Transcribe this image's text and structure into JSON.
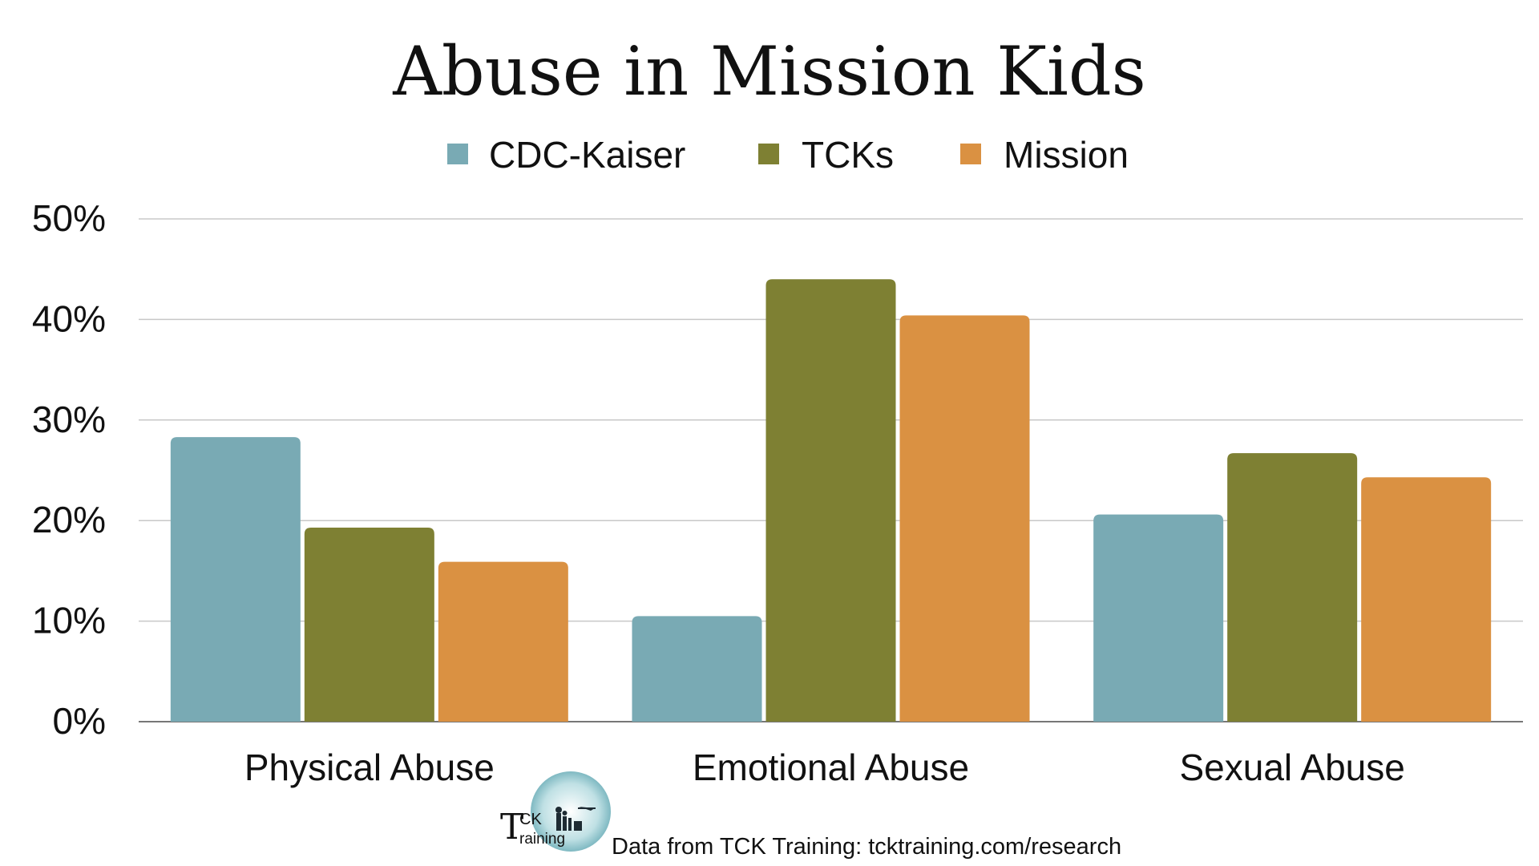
{
  "chart_data": {
    "type": "bar",
    "title": "Abuse in Mission Kids",
    "categories": [
      "Physical Abuse",
      "Emotional Abuse",
      "Sexual Abuse"
    ],
    "series": [
      {
        "name": "CDC-Kaiser",
        "color": "#79aab4",
        "values": [
          28.3,
          10.5,
          20.6
        ]
      },
      {
        "name": "TCKs",
        "color": "#7e8033",
        "values": [
          19.3,
          44.0,
          26.7
        ]
      },
      {
        "name": "Mission",
        "color": "#da9142",
        "values": [
          15.9,
          40.4,
          24.3
        ]
      }
    ],
    "ylim": [
      0,
      50
    ],
    "yticks": [
      "0%",
      "10%",
      "20%",
      "30%",
      "40%",
      "50%"
    ],
    "grid": true,
    "legend": "top-center"
  },
  "footer": {
    "logo_text_top": "CK",
    "logo_text_letter": "T",
    "logo_text_bottom": "raining",
    "source": "Data from TCK Training: tcktraining.com/research"
  }
}
